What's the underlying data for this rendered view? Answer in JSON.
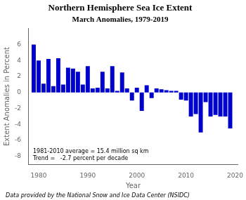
{
  "chart_data": {
    "type": "bar",
    "title": "Northern Hemisphere Sea Ice Extent",
    "subtitle": "March Anomalies, 1979-2019",
    "xlabel": "Year",
    "ylabel": "Extent Anomalies in Percent",
    "annotations": [
      "1981-2010 average = 15.4 million sq km",
      "Trend =   -2.7 percent per decade"
    ],
    "footer": "Data provided by the National Snow and Ice Data Center (NSIDC)",
    "x": [
      1979,
      1980,
      1981,
      1982,
      1983,
      1984,
      1985,
      1986,
      1987,
      1988,
      1989,
      1990,
      1991,
      1992,
      1993,
      1994,
      1995,
      1996,
      1997,
      1998,
      1999,
      2000,
      2001,
      2002,
      2003,
      2004,
      2005,
      2006,
      2007,
      2008,
      2009,
      2010,
      2011,
      2012,
      2013,
      2014,
      2015,
      2016,
      2017,
      2018,
      2019
    ],
    "values": [
      6.0,
      4.0,
      1.1,
      4.2,
      0.8,
      4.3,
      1.0,
      3.1,
      3.0,
      2.6,
      1.0,
      3.3,
      0.5,
      0.6,
      2.6,
      0.5,
      3.3,
      0.2,
      2.5,
      0.5,
      -1.0,
      0.6,
      -2.3,
      0.9,
      -0.7,
      0.5,
      0.4,
      0.3,
      0.2,
      0.2,
      -0.9,
      -1.0,
      -3.0,
      -2.7,
      -5.0,
      -1.2,
      -3.0,
      -2.8,
      -3.0,
      -3.0,
      -4.5
    ],
    "color": "#0000cd",
    "xlim": [
      1978.0,
      2020.5
    ],
    "xticks": [
      1980,
      1990,
      2000,
      2010,
      2020
    ],
    "ylim": [
      -9,
      8
    ],
    "yticks": [
      -8,
      -6,
      -4,
      -2,
      0,
      2,
      4,
      6
    ],
    "grid": false
  }
}
